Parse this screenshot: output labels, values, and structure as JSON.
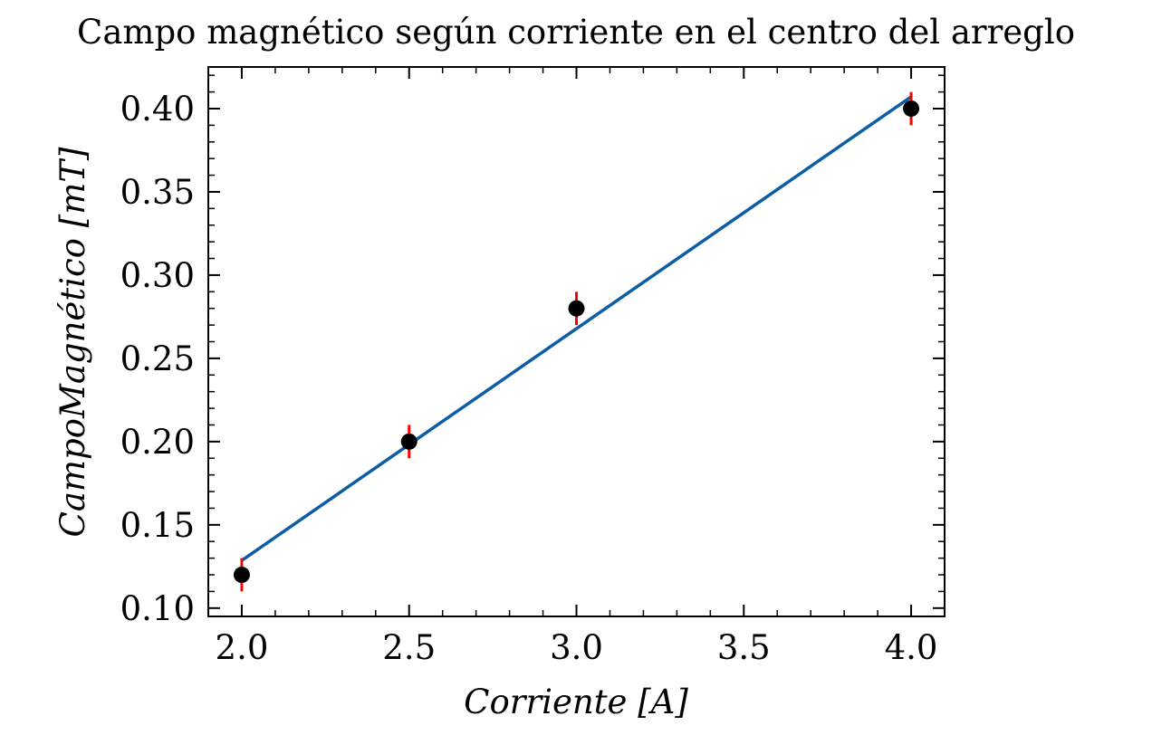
{
  "chart_data": {
    "type": "scatter",
    "title": "Campo magnético según corriente en el centro del arreglo",
    "xlabel": "Corriente [A]",
    "ylabel": "CampoMagnético [mT]",
    "xlim": [
      1.9,
      4.1
    ],
    "ylim": [
      0.095,
      0.425
    ],
    "x_ticks": [
      2.0,
      2.5,
      3.0,
      3.5,
      4.0
    ],
    "x_tick_labels": [
      "2.0",
      "2.5",
      "3.0",
      "3.5",
      "4.0"
    ],
    "y_ticks": [
      0.1,
      0.15,
      0.2,
      0.25,
      0.3,
      0.35,
      0.4
    ],
    "y_tick_labels": [
      "0.10",
      "0.15",
      "0.20",
      "0.25",
      "0.30",
      "0.35",
      "0.40"
    ],
    "grid": false,
    "points": {
      "x": [
        2.0,
        2.5,
        3.0,
        4.0
      ],
      "y": [
        0.12,
        0.2,
        0.28,
        0.4
      ],
      "yerr": [
        0.01,
        0.01,
        0.01,
        0.01
      ],
      "marker_color": "#000000",
      "errorbar_color": "#ff0000"
    },
    "fit_line": {
      "x": [
        2.0,
        4.0
      ],
      "y": [
        0.1286,
        0.4071
      ],
      "color": "#0c5da5"
    }
  }
}
